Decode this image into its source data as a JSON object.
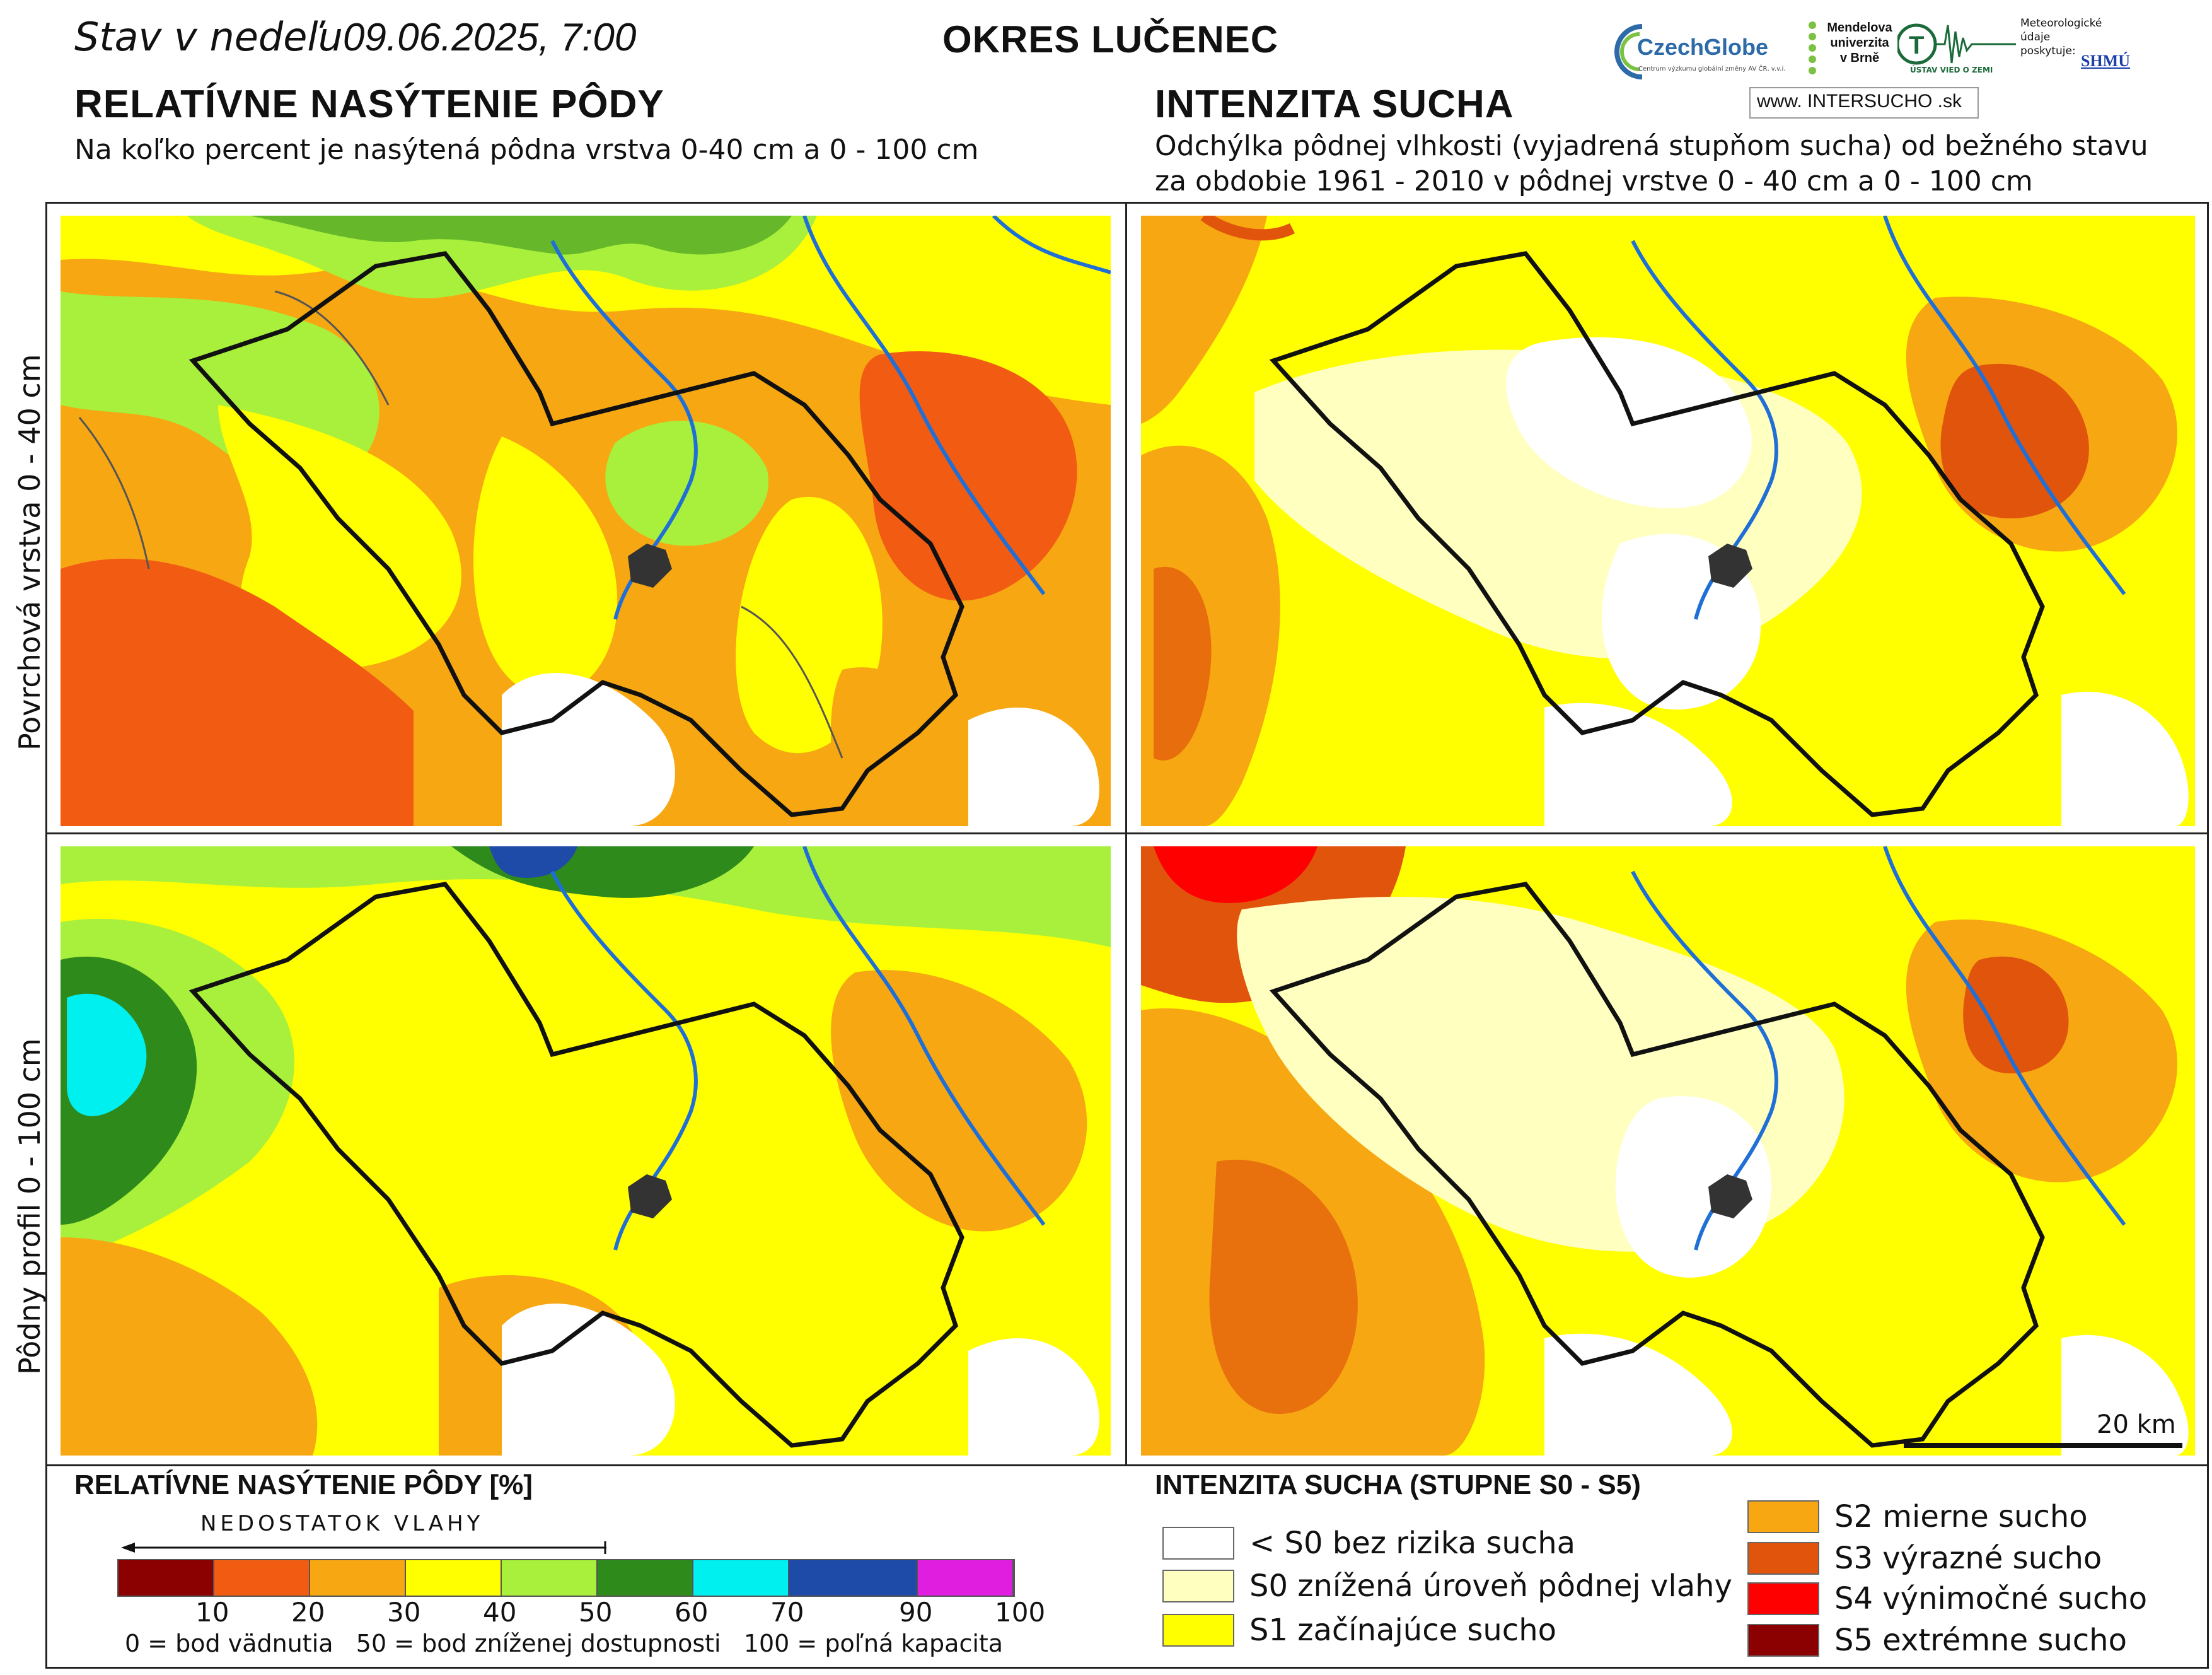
{
  "header": {
    "date_prefix": "Stav v nedeľu",
    "date": "09.06.2025, 7:00",
    "region": "OKRES  LUČENEC"
  },
  "left": {
    "title": "RELATÍVNE NASÝTENIE PÔDY",
    "subtitle": "Na koľko percent je nasýtená pôdna vrstva 0-40 cm a 0 - 100 cm"
  },
  "right": {
    "title": "INTENZITA SUCHA",
    "subtitle_line1": "Odchýlka pôdnej vlhkosti (vyjadrená stupňom sucha) od bežného stavu",
    "subtitle_line2": "za obdobie 1961 - 2010 v pôdnej vrstve 0 - 40 cm a 0 - 100 cm"
  },
  "rows": {
    "top": "Povrchová vrstva 0 - 40 cm",
    "bottom": "Pôdny profil 0 - 100 cm"
  },
  "logos": {
    "czechglobe": "CzechGlobe",
    "czechglobe_sub": "Centrum výzkumu globální změny AV ČR, v.v.i.",
    "mendel": "Mendelova univerzita v Brně",
    "uvz": "ÚSTAV VIED O ZEMI",
    "shmu_text": "Meteorologické\núdaje\nposkytuje:",
    "shmu": "SHMÚ",
    "intersucho": "www. INTERSUCHO .sk"
  },
  "scale": {
    "label": "20 km"
  },
  "legend_left": {
    "title": "RELATÍVNE NASÝTENIE PÔDY [%]",
    "arrow_label": "NEDOSTATOK VLAHY",
    "colors": [
      "#8b0000",
      "#f25c12",
      "#f7a712",
      "#ffff00",
      "#a8f03c",
      "#2f8a1c",
      "#00f0f0",
      "#1e4aa8",
      "#e01ee0"
    ],
    "ticks": [
      "10",
      "20",
      "30",
      "40",
      "50",
      "60",
      "70",
      "90",
      "100"
    ],
    "footnote": "0 = bod vädnutia   50 = bod zníženej dostupnosti   100 = poľná kapacita"
  },
  "legend_right": {
    "title": "INTENZITA SUCHA (STUPNE S0 - S5)",
    "items": [
      {
        "color": "#ffffff",
        "label": "< S0 bez rizika sucha"
      },
      {
        "color": "#ffffc0",
        "label": "S0 znížená úroveň pôdnej vlahy"
      },
      {
        "color": "#ffff00",
        "label": "S1 začínajúce sucho"
      },
      {
        "color": "#f7a712",
        "label": "S2 mierne sucho"
      },
      {
        "color": "#e0540c",
        "label": "S3 výrazné sucho"
      },
      {
        "color": "#ff0000",
        "label": "S4 výnimočné sucho"
      },
      {
        "color": "#8b0000",
        "label": "S5 extrémne sucho"
      }
    ]
  }
}
